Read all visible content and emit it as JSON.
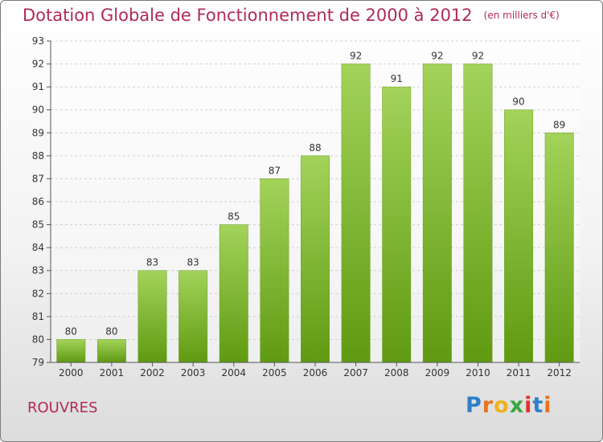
{
  "title": "Dotation Globale de Fonctionnement de 2000 à 2012",
  "unit": "(en milliers d'€)",
  "commune": "ROUVRES",
  "logo": {
    "letters": [
      "P",
      "r",
      "o",
      "x",
      "i",
      "t",
      "i"
    ],
    "colors": [
      "#2f7fc9",
      "#e8731e",
      "#f0b21b",
      "#3aa63d",
      "#e2322b",
      "#2f7fc9",
      "#e8731e"
    ]
  },
  "colors": {
    "bar_top": "#a3d35a",
    "bar_bottom": "#5f9a12",
    "text": "#b02a5a",
    "grid": "#cfcfcf"
  },
  "chart_data": {
    "type": "bar",
    "title": "Dotation Globale de Fonctionnement de 2000 à 2012",
    "subtitle": "(en milliers d'€)",
    "categories": [
      "2000",
      "2001",
      "2002",
      "2003",
      "2004",
      "2005",
      "2006",
      "2007",
      "2008",
      "2009",
      "2010",
      "2011",
      "2012"
    ],
    "values": [
      80,
      80,
      83,
      83,
      85,
      87,
      88,
      92,
      91,
      92,
      92,
      90,
      89
    ],
    "ylim": [
      79,
      93
    ],
    "yticks": [
      79,
      80,
      81,
      82,
      83,
      84,
      85,
      86,
      87,
      88,
      89,
      90,
      91,
      92,
      93
    ],
    "grid": true,
    "legend": "none"
  }
}
